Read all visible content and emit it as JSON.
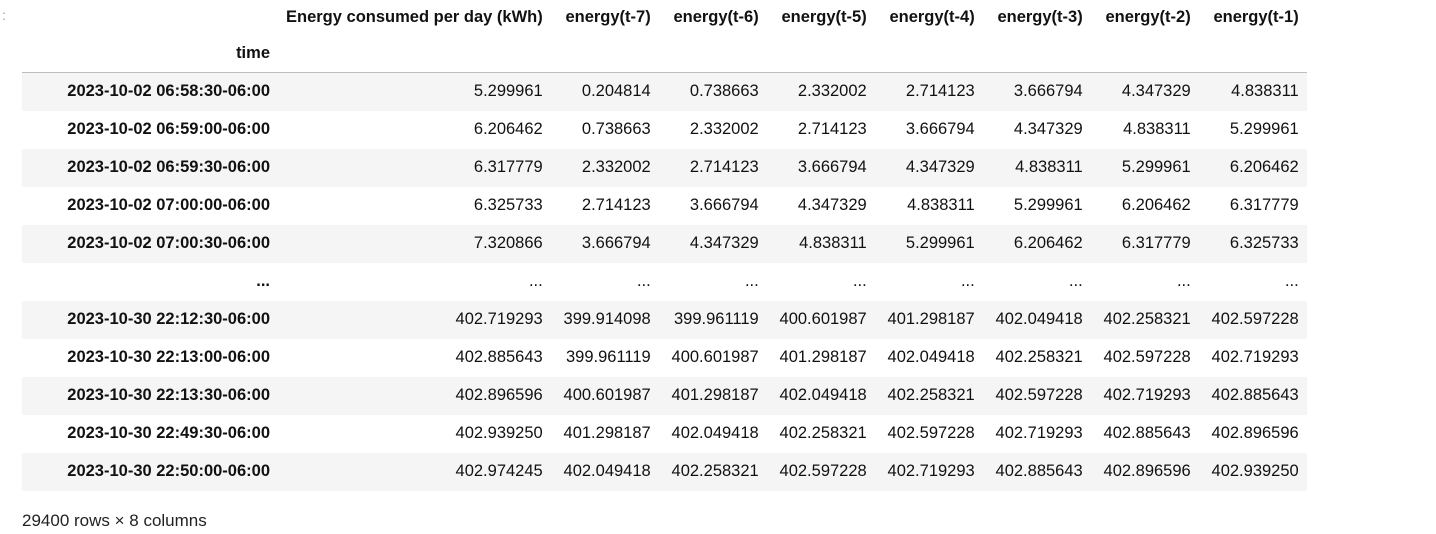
{
  "table": {
    "index_name": "time",
    "columns": [
      "Energy consumed per day (kWh)",
      "energy(t-7)",
      "energy(t-6)",
      "energy(t-5)",
      "energy(t-4)",
      "energy(t-3)",
      "energy(t-2)",
      "energy(t-1)"
    ],
    "rows": [
      {
        "index": "2023-10-02 06:58:30-06:00",
        "values": [
          "5.299961",
          "0.204814",
          "0.738663",
          "2.332002",
          "2.714123",
          "3.666794",
          "4.347329",
          "4.838311"
        ]
      },
      {
        "index": "2023-10-02 06:59:00-06:00",
        "values": [
          "6.206462",
          "0.738663",
          "2.332002",
          "2.714123",
          "3.666794",
          "4.347329",
          "4.838311",
          "5.299961"
        ]
      },
      {
        "index": "2023-10-02 06:59:30-06:00",
        "values": [
          "6.317779",
          "2.332002",
          "2.714123",
          "3.666794",
          "4.347329",
          "4.838311",
          "5.299961",
          "6.206462"
        ]
      },
      {
        "index": "2023-10-02 07:00:00-06:00",
        "values": [
          "6.325733",
          "2.714123",
          "3.666794",
          "4.347329",
          "4.838311",
          "5.299961",
          "6.206462",
          "6.317779"
        ]
      },
      {
        "index": "2023-10-02 07:00:30-06:00",
        "values": [
          "7.320866",
          "3.666794",
          "4.347329",
          "4.838311",
          "5.299961",
          "6.206462",
          "6.317779",
          "6.325733"
        ]
      },
      {
        "index": "...",
        "values": [
          "...",
          "...",
          "...",
          "...",
          "...",
          "...",
          "...",
          "..."
        ]
      },
      {
        "index": "2023-10-30 22:12:30-06:00",
        "values": [
          "402.719293",
          "399.914098",
          "399.961119",
          "400.601987",
          "401.298187",
          "402.049418",
          "402.258321",
          "402.597228"
        ]
      },
      {
        "index": "2023-10-30 22:13:00-06:00",
        "values": [
          "402.885643",
          "399.961119",
          "400.601987",
          "401.298187",
          "402.049418",
          "402.258321",
          "402.597228",
          "402.719293"
        ]
      },
      {
        "index": "2023-10-30 22:13:30-06:00",
        "values": [
          "402.896596",
          "400.601987",
          "401.298187",
          "402.049418",
          "402.258321",
          "402.597228",
          "402.719293",
          "402.885643"
        ]
      },
      {
        "index": "2023-10-30 22:49:30-06:00",
        "values": [
          "402.939250",
          "401.298187",
          "402.049418",
          "402.258321",
          "402.597228",
          "402.719293",
          "402.885643",
          "402.896596"
        ]
      },
      {
        "index": "2023-10-30 22:50:00-06:00",
        "values": [
          "402.974245",
          "402.049418",
          "402.258321",
          "402.597228",
          "402.719293",
          "402.885643",
          "402.896596",
          "402.939250"
        ]
      }
    ],
    "shape_text": "29400 rows × 8 columns"
  },
  "gutter": {
    "handle_glyph": ":"
  }
}
